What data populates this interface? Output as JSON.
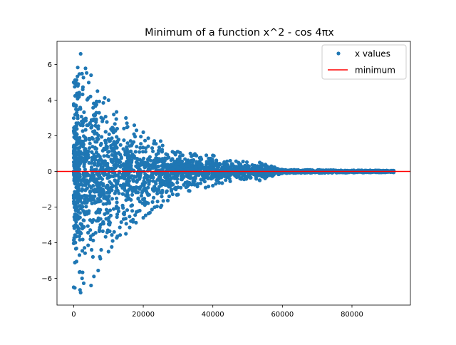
{
  "chart_data": {
    "type": "scatter",
    "title": "Minimum of a function x^2 - cos 4πx",
    "xlabel": "",
    "ylabel": "",
    "xlim": [
      -4800,
      96800
    ],
    "ylim": [
      -7.5,
      7.3
    ],
    "xticks": [
      0,
      20000,
      40000,
      60000,
      80000
    ],
    "xtick_labels": [
      "0",
      "20000",
      "40000",
      "60000",
      "80000"
    ],
    "yticks": [
      -6,
      -4,
      -2,
      0,
      2,
      4,
      6
    ],
    "ytick_labels": [
      "−6",
      "−4",
      "−2",
      "0",
      "2",
      "4",
      "6"
    ],
    "grid": false,
    "legend_position": "top-right",
    "series": [
      {
        "name": "x values",
        "kind": "points",
        "color": "#1f77b4",
        "x_range": [
          0,
          92000
        ],
        "point_count": 92000,
        "envelope": [
          {
            "x": 0,
            "min": -6.5,
            "max": 5.0
          },
          {
            "x": 2000,
            "min": -6.8,
            "max": 6.6
          },
          {
            "x": 5000,
            "min": -6.4,
            "max": 5.4
          },
          {
            "x": 10000,
            "min": -4.5,
            "max": 4.0
          },
          {
            "x": 15000,
            "min": -3.5,
            "max": 3.0
          },
          {
            "x": 20000,
            "min": -2.6,
            "max": 2.2
          },
          {
            "x": 25000,
            "min": -2.0,
            "max": 1.7
          },
          {
            "x": 30000,
            "min": -1.3,
            "max": 1.1
          },
          {
            "x": 40000,
            "min": -0.8,
            "max": 0.9
          },
          {
            "x": 45000,
            "min": -0.55,
            "max": 0.6
          },
          {
            "x": 53500,
            "min": -0.5,
            "max": 0.5
          },
          {
            "x": 60000,
            "min": -0.1,
            "max": 0.1
          },
          {
            "x": 92000,
            "min": -0.05,
            "max": 0.05
          }
        ]
      },
      {
        "name": "minimum",
        "kind": "hline",
        "y": 0,
        "color": "#ff0000"
      }
    ]
  }
}
